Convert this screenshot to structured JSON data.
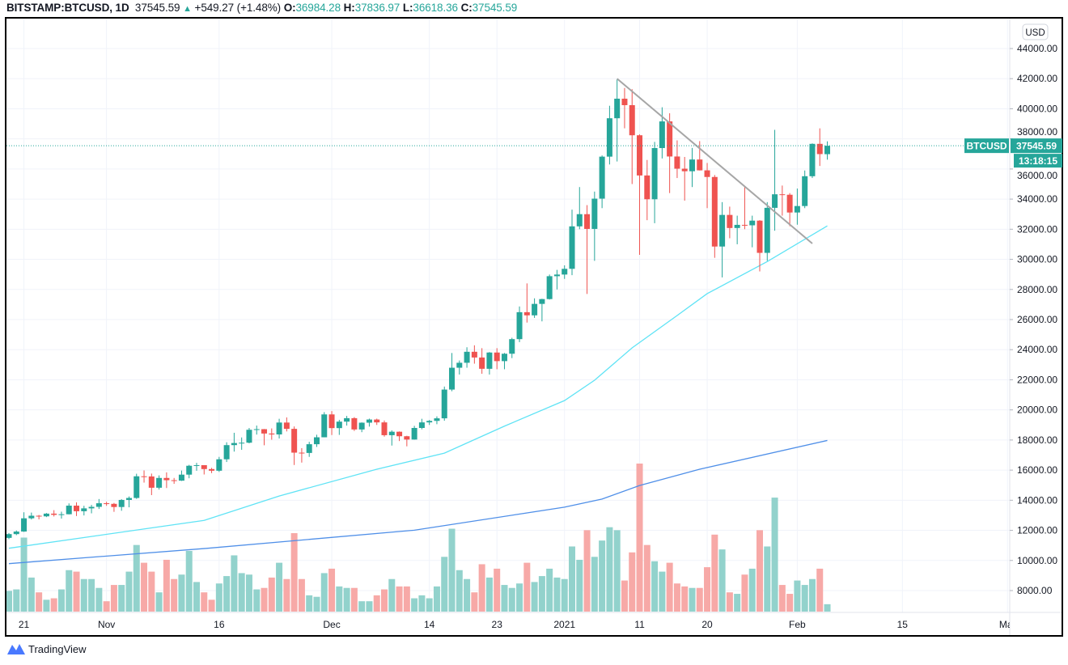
{
  "header": {
    "symbol": "BITSTAMP:BTCUSD, 1D",
    "last": "37545.59",
    "change": "+549.27 (+1.48%)",
    "o_label": "O:",
    "o": "36984.28",
    "h_label": "H:",
    "h": "37836.97",
    "l_label": "L:",
    "l": "36618.36",
    "c_label": "C:",
    "c": "37545.59"
  },
  "price_axis": {
    "currency": "USD",
    "symbol_tag": "BTCUSD",
    "last_price_tag": "37545.59",
    "countdown": "13:18:15"
  },
  "branding": "TradingView",
  "colors": {
    "up": "#26a69a",
    "down": "#ef5350",
    "ma_fast": "#5fe3f5",
    "ma_slow": "#4f8fe8",
    "trendline": "#a6a6a6"
  },
  "chart_data": {
    "type": "candlestick",
    "title": "BITSTAMP:BTCUSD, 1D",
    "ylim": [
      7000,
      45000
    ],
    "y_ticks": [
      "44000.00",
      "42000.00",
      "40000.00",
      "38000.00",
      "36000.00",
      "34000.00",
      "32000.00",
      "30000.00",
      "28000.00",
      "26000.00",
      "24000.00",
      "22000.00",
      "20000.00",
      "18000.00",
      "16000.00",
      "14000.00",
      "12000.00",
      "10000.00",
      "8000.00"
    ],
    "x_ticks": [
      {
        "date": "2020-10-21",
        "label": "21"
      },
      {
        "date": "2020-11-01",
        "label": "Nov"
      },
      {
        "date": "2020-11-16",
        "label": "16"
      },
      {
        "date": "2020-12-01",
        "label": "Dec"
      },
      {
        "date": "2020-12-14",
        "label": "14"
      },
      {
        "date": "2020-12-23",
        "label": "23"
      },
      {
        "date": "2021-01-01",
        "label": "2021"
      },
      {
        "date": "2021-01-11",
        "label": "11"
      },
      {
        "date": "2021-01-20",
        "label": "20"
      },
      {
        "date": "2021-02-01",
        "label": "Feb"
      },
      {
        "date": "2021-02-15",
        "label": "15"
      },
      {
        "date": "2021-03-01",
        "label": "Mar"
      }
    ],
    "ohlc_columns": [
      "date",
      "open",
      "high",
      "low",
      "close"
    ],
    "ohlc": [
      [
        "2020-10-19",
        11500,
        11820,
        11420,
        11750
      ],
      [
        "2020-10-20",
        11750,
        11990,
        11680,
        11920
      ],
      [
        "2020-10-21",
        11920,
        13200,
        11900,
        12800
      ],
      [
        "2020-10-22",
        12800,
        13180,
        12720,
        12970
      ],
      [
        "2020-10-23",
        12970,
        13020,
        12730,
        12930
      ],
      [
        "2020-10-24",
        12930,
        13150,
        12880,
        13110
      ],
      [
        "2020-10-25",
        13110,
        13340,
        12920,
        13030
      ],
      [
        "2020-10-26",
        13030,
        13240,
        12780,
        13070
      ],
      [
        "2020-10-27",
        13070,
        13790,
        13060,
        13640
      ],
      [
        "2020-10-28",
        13640,
        13860,
        12950,
        13270
      ],
      [
        "2020-10-29",
        13270,
        13630,
        12990,
        13460
      ],
      [
        "2020-10-30",
        13460,
        13690,
        13130,
        13560
      ],
      [
        "2020-10-31",
        13560,
        14080,
        13420,
        13800
      ],
      [
        "2020-11-01",
        13800,
        13900,
        13630,
        13760
      ],
      [
        "2020-11-02",
        13760,
        13820,
        13230,
        13550
      ],
      [
        "2020-11-03",
        13550,
        14070,
        13300,
        14020
      ],
      [
        "2020-11-04",
        14020,
        14250,
        13530,
        14150
      ],
      [
        "2020-11-05",
        14150,
        15760,
        14090,
        15590
      ],
      [
        "2020-11-06",
        15590,
        15980,
        15170,
        15580
      ],
      [
        "2020-11-07",
        15580,
        15770,
        14340,
        14830
      ],
      [
        "2020-11-08",
        14830,
        15650,
        14710,
        15480
      ],
      [
        "2020-11-09",
        15480,
        15850,
        14810,
        15330
      ],
      [
        "2020-11-10",
        15330,
        15480,
        15090,
        15300
      ],
      [
        "2020-11-11",
        15300,
        15970,
        15280,
        15700
      ],
      [
        "2020-11-12",
        15700,
        16350,
        15460,
        16290
      ],
      [
        "2020-11-13",
        16290,
        16480,
        15960,
        16330
      ],
      [
        "2020-11-14",
        16330,
        16330,
        15710,
        16070
      ],
      [
        "2020-11-15",
        16070,
        16150,
        15800,
        15960
      ],
      [
        "2020-11-16",
        15960,
        16880,
        15880,
        16720
      ],
      [
        "2020-11-17",
        16720,
        17850,
        16540,
        17660
      ],
      [
        "2020-11-18",
        17660,
        18480,
        17230,
        17800
      ],
      [
        "2020-11-19",
        17800,
        18170,
        17350,
        17820
      ],
      [
        "2020-11-20",
        17820,
        18800,
        17780,
        18680
      ],
      [
        "2020-11-21",
        18680,
        18960,
        18360,
        18720
      ],
      [
        "2020-11-22",
        18720,
        18730,
        17650,
        18430
      ],
      [
        "2020-11-23",
        18430,
        18770,
        18020,
        18370
      ],
      [
        "2020-11-24",
        18370,
        19410,
        18100,
        19160
      ],
      [
        "2020-11-25",
        19160,
        19500,
        18570,
        18740
      ],
      [
        "2020-11-26",
        18740,
        18900,
        16340,
        17160
      ],
      [
        "2020-11-27",
        17160,
        17460,
        16500,
        17140
      ],
      [
        "2020-11-28",
        17140,
        17880,
        16880,
        17720
      ],
      [
        "2020-11-29",
        17720,
        18350,
        17540,
        18180
      ],
      [
        "2020-11-30",
        18180,
        19850,
        18180,
        19700
      ],
      [
        "2020-12-01",
        19700,
        19920,
        18330,
        18790
      ],
      [
        "2020-12-02",
        18790,
        19340,
        18340,
        19220
      ],
      [
        "2020-12-03",
        19220,
        19600,
        18960,
        19450
      ],
      [
        "2020-12-04",
        19450,
        19520,
        18600,
        18700
      ],
      [
        "2020-12-05",
        18700,
        19170,
        18520,
        19150
      ],
      [
        "2020-12-06",
        19150,
        19420,
        18890,
        19360
      ],
      [
        "2020-12-07",
        19360,
        19420,
        19000,
        19170
      ],
      [
        "2020-12-08",
        19170,
        19300,
        18220,
        18320
      ],
      [
        "2020-12-09",
        18320,
        18640,
        17630,
        18550
      ],
      [
        "2020-12-10",
        18550,
        18570,
        17930,
        18250
      ],
      [
        "2020-12-11",
        18250,
        18280,
        17580,
        18030
      ],
      [
        "2020-12-12",
        18030,
        18940,
        18020,
        18800
      ],
      [
        "2020-12-13",
        18800,
        19410,
        18710,
        19170
      ],
      [
        "2020-12-14",
        19170,
        19330,
        19000,
        19270
      ],
      [
        "2020-12-15",
        19270,
        19570,
        19050,
        19440
      ],
      [
        "2020-12-16",
        19440,
        21550,
        19280,
        21350
      ],
      [
        "2020-12-17",
        21350,
        23780,
        21240,
        22800
      ],
      [
        "2020-12-18",
        22800,
        23280,
        22350,
        23130
      ],
      [
        "2020-12-19",
        23130,
        24160,
        22800,
        23860
      ],
      [
        "2020-12-20",
        23860,
        24290,
        23070,
        23480
      ],
      [
        "2020-12-21",
        23480,
        24100,
        22400,
        22730
      ],
      [
        "2020-12-22",
        22730,
        23840,
        22350,
        23810
      ],
      [
        "2020-12-23",
        23810,
        24100,
        22700,
        23240
      ],
      [
        "2020-12-24",
        23240,
        23780,
        22700,
        23730
      ],
      [
        "2020-12-25",
        23730,
        24790,
        23440,
        24700
      ],
      [
        "2020-12-26",
        24700,
        26870,
        24500,
        26490
      ],
      [
        "2020-12-27",
        26490,
        28400,
        25800,
        26280
      ],
      [
        "2020-12-28",
        26280,
        27410,
        26110,
        27040
      ],
      [
        "2020-12-29",
        27040,
        27380,
        25880,
        27360
      ],
      [
        "2020-12-30",
        27360,
        28990,
        27330,
        28880
      ],
      [
        "2020-12-31",
        28880,
        29300,
        28000,
        28990
      ],
      [
        "2021-01-01",
        28990,
        29600,
        28700,
        29370
      ],
      [
        "2021-01-02",
        29370,
        33300,
        28950,
        32190
      ],
      [
        "2021-01-03",
        32190,
        34800,
        32000,
        33000
      ],
      [
        "2021-01-04",
        33000,
        33600,
        27700,
        32020
      ],
      [
        "2021-01-05",
        32020,
        34500,
        29900,
        34030
      ],
      [
        "2021-01-06",
        34030,
        36900,
        33400,
        36820
      ],
      [
        "2021-01-07",
        36820,
        40200,
        36300,
        39370
      ],
      [
        "2021-01-08",
        39370,
        41950,
        36500,
        40670
      ],
      [
        "2021-01-09",
        40670,
        41380,
        38700,
        40240
      ],
      [
        "2021-01-10",
        40240,
        41300,
        35000,
        38240
      ],
      [
        "2021-01-11",
        38240,
        38300,
        30300,
        35570
      ],
      [
        "2021-01-12",
        35570,
        36600,
        32600,
        33990
      ],
      [
        "2021-01-13",
        33990,
        37800,
        32400,
        37390
      ],
      [
        "2021-01-14",
        37390,
        40100,
        36700,
        39160
      ],
      [
        "2021-01-15",
        39160,
        39700,
        34400,
        36830
      ],
      [
        "2021-01-16",
        36830,
        37900,
        35400,
        36020
      ],
      [
        "2021-01-17",
        36020,
        36800,
        33900,
        35850
      ],
      [
        "2021-01-18",
        35850,
        37400,
        34800,
        36630
      ],
      [
        "2021-01-19",
        36630,
        37850,
        35900,
        35910
      ],
      [
        "2021-01-20",
        35910,
        36400,
        33400,
        35470
      ],
      [
        "2021-01-21",
        35470,
        35600,
        30100,
        30850
      ],
      [
        "2021-01-22",
        30850,
        33800,
        28800,
        32950
      ],
      [
        "2021-01-23",
        32950,
        33500,
        31400,
        32080
      ],
      [
        "2021-01-24",
        32080,
        32900,
        31000,
        32290
      ],
      [
        "2021-01-25",
        32290,
        34800,
        32000,
        32260
      ],
      [
        "2021-01-26",
        32260,
        32900,
        30800,
        32570
      ],
      [
        "2021-01-27",
        32570,
        32600,
        29200,
        30430
      ],
      [
        "2021-01-28",
        30430,
        33800,
        29900,
        33420
      ],
      [
        "2021-01-29",
        33420,
        38600,
        31900,
        34320
      ],
      [
        "2021-01-30",
        34320,
        34900,
        32900,
        34290
      ],
      [
        "2021-01-31",
        34290,
        34400,
        32200,
        33110
      ],
      [
        "2021-02-01",
        33110,
        34700,
        32300,
        33540
      ],
      [
        "2021-02-02",
        33540,
        35900,
        33400,
        35520
      ],
      [
        "2021-02-03",
        35520,
        37700,
        35400,
        37670
      ],
      [
        "2021-02-04",
        37670,
        38700,
        36200,
        36990
      ],
      [
        "2021-02-05",
        36984.28,
        37836.97,
        36618.36,
        37545.59
      ]
    ],
    "volume_relative_to_max": [
      14,
      15,
      50,
      23,
      13,
      8,
      9,
      15,
      28,
      27,
      22,
      22,
      16,
      7,
      18,
      18,
      27,
      45,
      33,
      27,
      13,
      35,
      22,
      25,
      41,
      20,
      13,
      8,
      19,
      24,
      38,
      26,
      25,
      15,
      16,
      23,
      33,
      22,
      53,
      22,
      11,
      10,
      26,
      29,
      17,
      16,
      16,
      7,
      7,
      11,
      15,
      22,
      17,
      17,
      9,
      11,
      9,
      17,
      37,
      56,
      28,
      22,
      13,
      32,
      23,
      29,
      18,
      16,
      19,
      33,
      20,
      24,
      29,
      23,
      22,
      44,
      35,
      55,
      37,
      48,
      57,
      55,
      21,
      40,
      100,
      45,
      34,
      27,
      33,
      19,
      17,
      16,
      16,
      30,
      52,
      42,
      13,
      12,
      25,
      29,
      55,
      44,
      77,
      18,
      12,
      21,
      18,
      22,
      29,
      5
    ],
    "ma_fast": [
      [
        "2020-10-19",
        10810
      ],
      [
        "2020-11-14",
        12660
      ],
      [
        "2020-11-24",
        14280
      ],
      [
        "2020-12-07",
        16060
      ],
      [
        "2020-12-16",
        17130
      ],
      [
        "2020-12-24",
        18920
      ],
      [
        "2021-01-01",
        20620
      ],
      [
        "2021-01-05",
        21970
      ],
      [
        "2021-01-10",
        24120
      ],
      [
        "2021-01-16",
        26270
      ],
      [
        "2021-01-20",
        27720
      ],
      [
        "2021-01-28",
        29850
      ],
      [
        "2021-02-05",
        32220
      ]
    ],
    "ma_slow": [
      [
        "2020-10-19",
        9790
      ],
      [
        "2020-11-14",
        10790
      ],
      [
        "2020-12-12",
        12010
      ],
      [
        "2021-01-01",
        13540
      ],
      [
        "2021-01-06",
        14080
      ],
      [
        "2021-01-11",
        14980
      ],
      [
        "2021-01-19",
        16060
      ],
      [
        "2021-02-05",
        17970
      ]
    ],
    "trendline": [
      [
        "2021-01-08",
        42000
      ],
      [
        "2021-02-03",
        31050
      ]
    ],
    "last_price": 37545.59,
    "grid": true
  }
}
